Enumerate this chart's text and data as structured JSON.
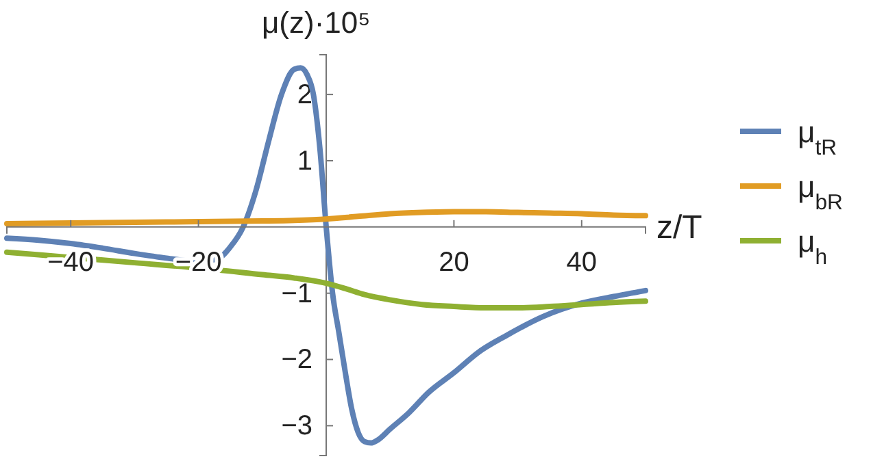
{
  "chart_data": {
    "type": "line",
    "xlabel": "z/T",
    "ylabel": "μ(z)·10⁵",
    "xlim": [
      -50,
      50
    ],
    "ylim": [
      -3.45,
      2.6
    ],
    "xticks": [
      -40,
      -20,
      20,
      40
    ],
    "yticks": [
      -3,
      -2,
      -1,
      1,
      2
    ],
    "legend": "right",
    "grid": false,
    "marker": "none",
    "line_style": "solid",
    "series": [
      {
        "name": "μ$_{tR}$",
        "color": "#5e81b5",
        "x": [
          -50,
          -45,
          -40,
          -35,
          -30,
          -25,
          -20,
          -17,
          -15,
          -13,
          -11,
          -9,
          -7,
          -5,
          -4,
          -3,
          -2,
          -1,
          0,
          1,
          2,
          3,
          4,
          5,
          6,
          7,
          8,
          10,
          13,
          16,
          20,
          24,
          28,
          34,
          40,
          45,
          50
        ],
        "values": [
          -0.17,
          -0.2,
          -0.25,
          -0.32,
          -0.4,
          -0.47,
          -0.52,
          -0.48,
          -0.3,
          0,
          0.55,
          1.3,
          2.0,
          2.38,
          2.4,
          2.3,
          2.0,
          1.2,
          0,
          -1.0,
          -1.6,
          -2.2,
          -2.75,
          -3.1,
          -3.24,
          -3.26,
          -3.22,
          -3.05,
          -2.8,
          -2.5,
          -2.2,
          -1.88,
          -1.65,
          -1.35,
          -1.15,
          -1.05,
          -0.96
        ]
      },
      {
        "name": "μ$_{bR}$",
        "color": "#e19c24",
        "x": [
          -50,
          -40,
          -30,
          -20,
          -10,
          -5,
          0,
          5,
          10,
          15,
          20,
          25,
          30,
          35,
          40,
          45,
          50
        ],
        "values": [
          0.05,
          0.06,
          0.07,
          0.08,
          0.09,
          0.1,
          0.12,
          0.16,
          0.2,
          0.22,
          0.23,
          0.23,
          0.22,
          0.21,
          0.2,
          0.18,
          0.17
        ]
      },
      {
        "name": "μ$_{h}$",
        "color": "#8fb032",
        "x": [
          -50,
          -40,
          -30,
          -20,
          -10,
          -5,
          0,
          3,
          6,
          10,
          15,
          20,
          25,
          30,
          35,
          40,
          45,
          50
        ],
        "values": [
          -0.38,
          -0.46,
          -0.54,
          -0.62,
          -0.72,
          -0.77,
          -0.85,
          -0.93,
          -1.02,
          -1.1,
          -1.17,
          -1.2,
          -1.22,
          -1.22,
          -1.2,
          -1.17,
          -1.14,
          -1.12
        ]
      }
    ]
  }
}
